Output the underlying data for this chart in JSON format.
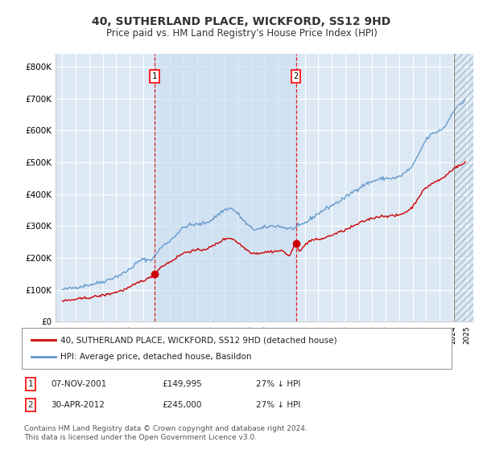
{
  "title": "40, SUTHERLAND PLACE, WICKFORD, SS12 9HD",
  "subtitle": "Price paid vs. HM Land Registry's House Price Index (HPI)",
  "ylim": [
    0,
    840000
  ],
  "bg_color": "#dce9f5",
  "grid_color": "#ffffff",
  "red_line_color": "#cc0000",
  "blue_line_color": "#6699cc",
  "blue_fill_color": "#dce9f5",
  "marker1_date": 2001.85,
  "marker1_value": 149995,
  "marker2_date": 2012.33,
  "marker2_value": 245000,
  "legend_label1": "40, SUTHERLAND PLACE, WICKFORD, SS12 9HD (detached house)",
  "legend_label2": "HPI: Average price, detached house, Basildon",
  "table_row1": [
    "1",
    "07-NOV-2001",
    "£149,995",
    "27% ↓ HPI"
  ],
  "table_row2": [
    "2",
    "30-APR-2012",
    "£245,000",
    "27% ↓ HPI"
  ],
  "footnote": "Contains HM Land Registry data © Crown copyright and database right 2024.\nThis data is licensed under the Open Government Licence v3.0."
}
